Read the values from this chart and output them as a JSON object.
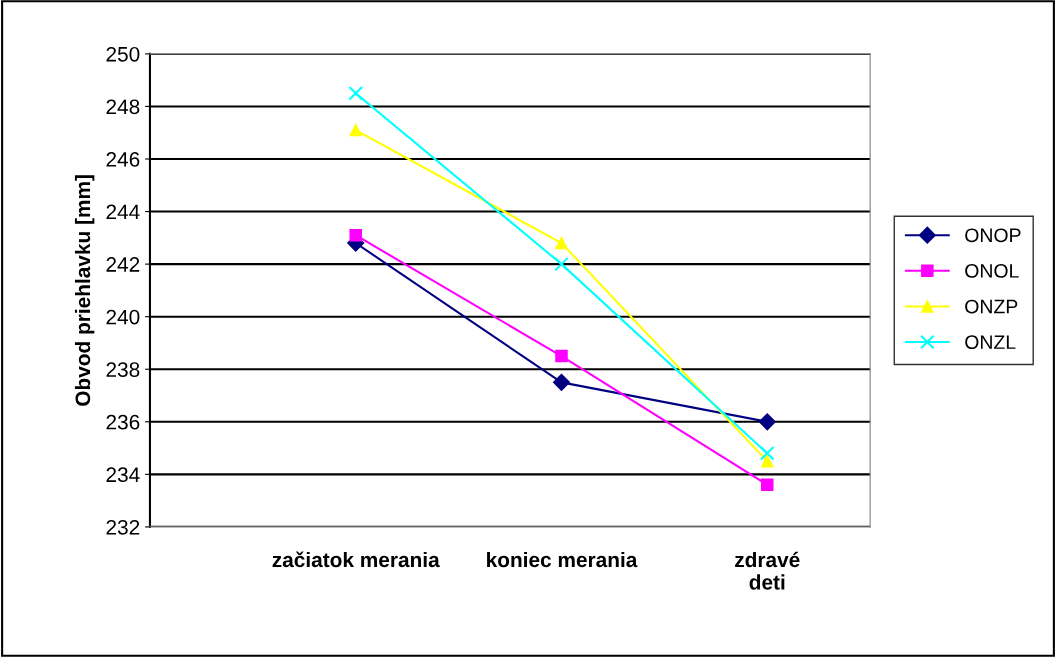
{
  "chart_data": {
    "type": "line",
    "ylabel": "Obvod priehlavku [mm]",
    "categories": [
      "začiatok merania",
      "koniec merania",
      "zdravé\ndeti"
    ],
    "series": [
      {
        "name": "ONOP",
        "color": "#000080",
        "marker": "diamond",
        "values": [
          242.8,
          237.5,
          236.0
        ]
      },
      {
        "name": "ONOL",
        "color": "#ff00ff",
        "marker": "square",
        "values": [
          243.1,
          238.5,
          233.6
        ]
      },
      {
        "name": "ONZP",
        "color": "#ffff00",
        "marker": "triangle",
        "values": [
          247.1,
          242.8,
          234.5
        ]
      },
      {
        "name": "ONZL",
        "color": "#00ffff",
        "marker": "cross",
        "values": [
          248.5,
          242.0,
          234.8
        ]
      }
    ],
    "ylim": [
      232,
      250
    ],
    "yticks": [
      232,
      234,
      236,
      238,
      240,
      242,
      244,
      246,
      248,
      250
    ],
    "grid": "y",
    "legend": "right",
    "line_style": "solid"
  }
}
